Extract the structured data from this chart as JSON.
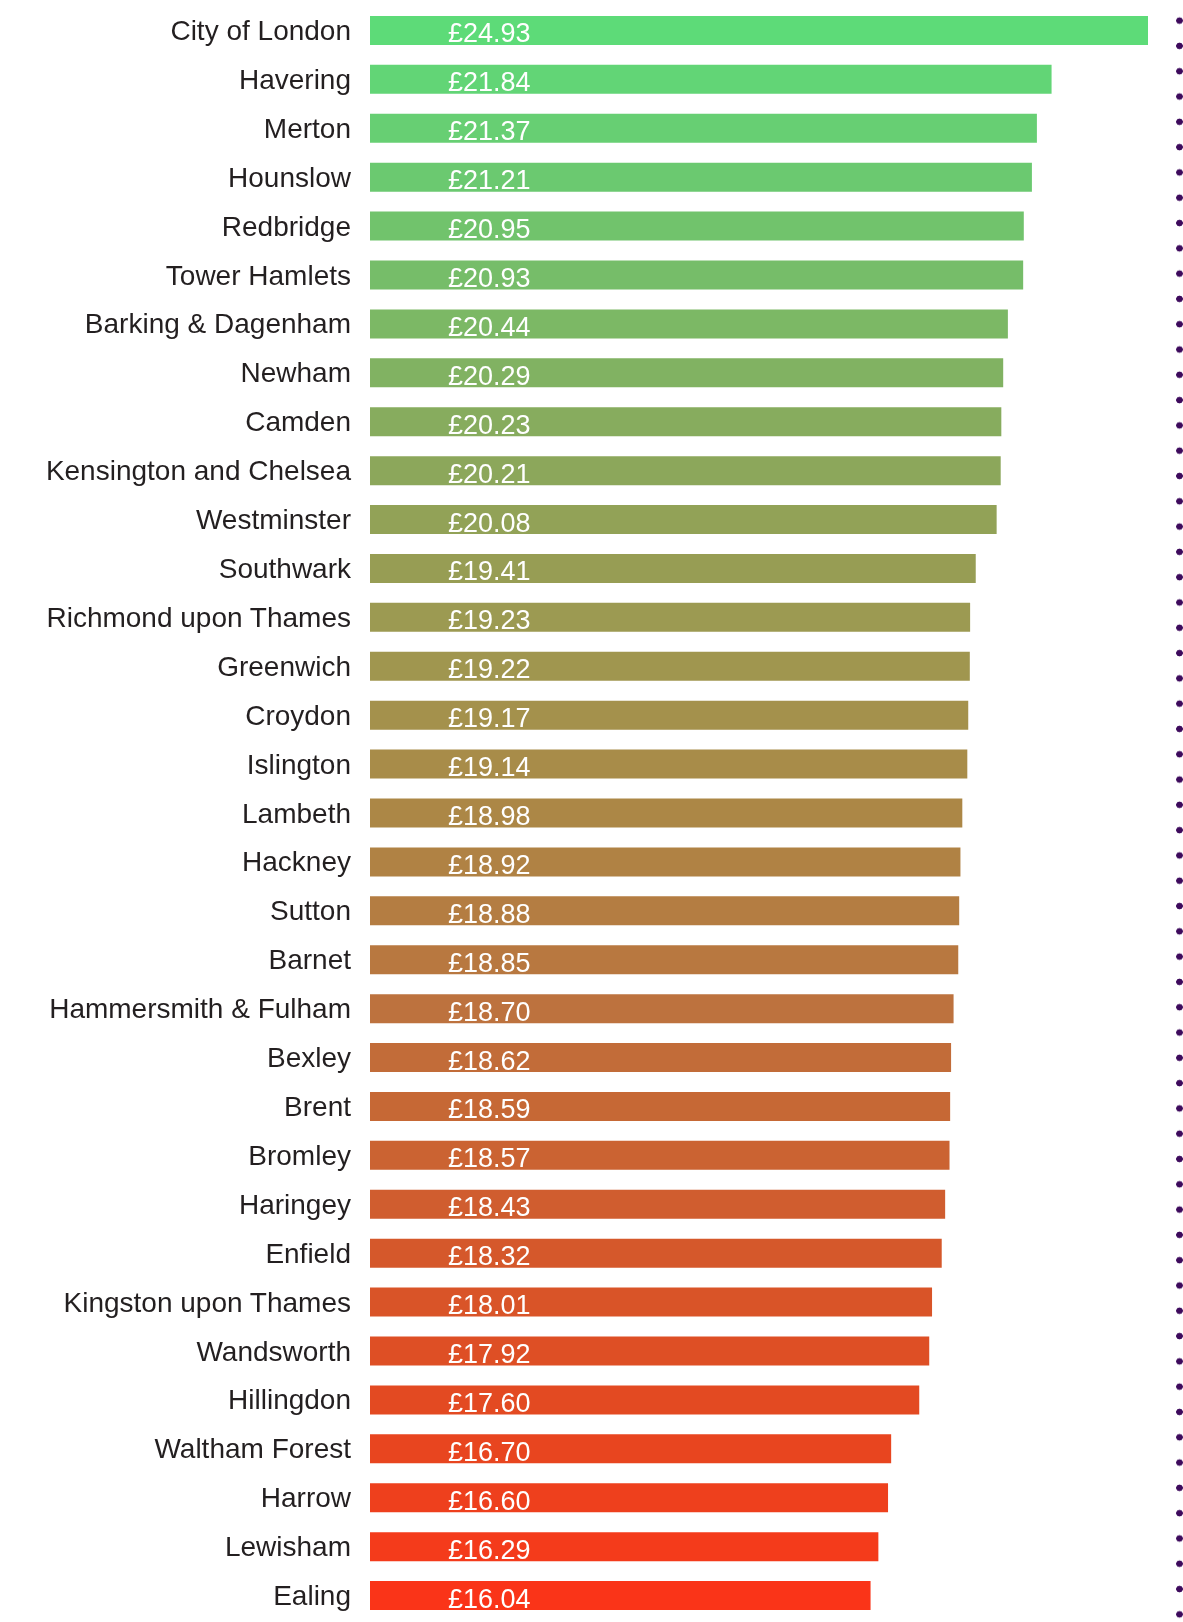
{
  "chart_data": {
    "type": "bar",
    "orientation": "horizontal",
    "tick_labels": "y",
    "categories": [
      "City of London",
      "Havering",
      "Merton",
      "Hounslow",
      "Redbridge",
      "Tower Hamlets",
      "Barking & Dagenham",
      "Newham",
      "Camden",
      "Kensington and Chelsea",
      "Westminster",
      "Southwark",
      "Richmond upon Thames",
      "Greenwich",
      "Croydon",
      "Islington",
      "Lambeth",
      "Hackney",
      "Sutton",
      "Barnet",
      "Hammersmith & Fulham",
      "Bexley",
      "Brent",
      "Bromley",
      "Haringey",
      "Enfield",
      "Kingston upon Thames",
      "Wandsworth",
      "Hillingdon",
      "Waltham Forest",
      "Harrow",
      "Lewisham",
      "Ealing"
    ],
    "values": [
      24.93,
      21.84,
      21.37,
      21.21,
      20.95,
      20.93,
      20.44,
      20.29,
      20.23,
      20.21,
      20.08,
      19.41,
      19.23,
      19.22,
      19.17,
      19.14,
      18.98,
      18.92,
      18.88,
      18.85,
      18.7,
      18.62,
      18.59,
      18.57,
      18.43,
      18.32,
      18.01,
      17.92,
      17.6,
      16.7,
      16.6,
      16.29,
      16.04
    ],
    "value_labels": [
      "£24.93",
      "£21.84",
      "£21.37",
      "£21.21",
      "£20.95",
      "£20.93",
      "£20.44",
      "£20.29",
      "£20.23",
      "£20.21",
      "£20.08",
      "£19.41",
      "£19.23",
      "£19.22",
      "£19.17",
      "£19.14",
      "£18.98",
      "£18.92",
      "£18.88",
      "£18.85",
      "£18.70",
      "£18.62",
      "£18.59",
      "£18.57",
      "£18.43",
      "£18.32",
      "£18.01",
      "£17.92",
      "£17.60",
      "£16.70",
      "£16.60",
      "£16.29",
      "£16.04"
    ],
    "colors": [
      "#5ddb78",
      "#62d576",
      "#67cf73",
      "#6bc970",
      "#71c36c",
      "#76bd69",
      "#7cb865",
      "#81b262",
      "#87ac5e",
      "#8ca75b",
      "#92a257",
      "#979d54",
      "#9c9a52",
      "#a0964f",
      "#a4914c",
      "#a88c49",
      "#ac8746",
      "#b08244",
      "#b47d42",
      "#b87840",
      "#bd723e",
      "#c26c39",
      "#c66835",
      "#cb6332",
      "#d05d2f",
      "#d5582b",
      "#d95428",
      "#de4f25",
      "#e34a22",
      "#e8451f",
      "#ee401d",
      "#f43b1b",
      "#fa3418"
    ]
  }
}
